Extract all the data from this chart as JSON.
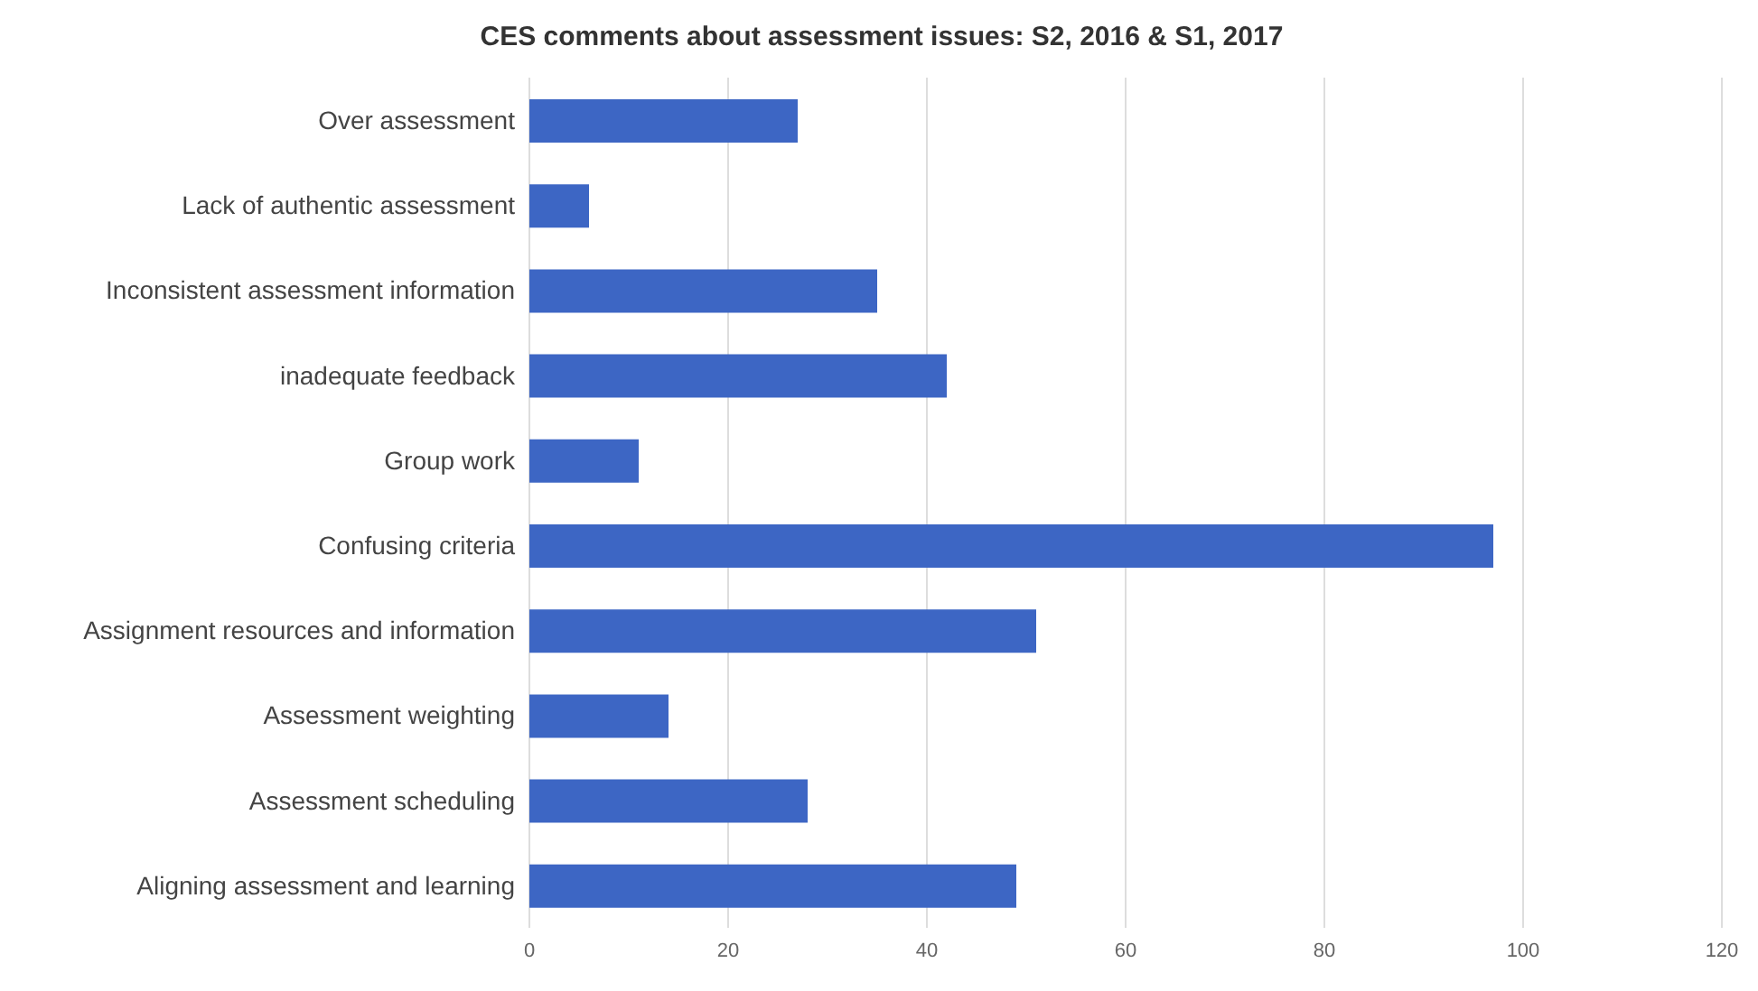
{
  "chart_data": {
    "type": "bar",
    "orientation": "horizontal",
    "title": "CES comments about assessment issues: S2, 2016 & S1, 2017",
    "categories": [
      "Over assessment",
      "Lack of authentic assessment",
      "Inconsistent assessment information",
      "inadequate feedback",
      "Group work",
      "Confusing criteria",
      "Assignment resources and information",
      "Assessment weighting",
      "Assessment scheduling",
      "Aligning assessment and learning"
    ],
    "values": [
      27,
      6,
      35,
      42,
      11,
      97,
      51,
      14,
      28,
      49
    ],
    "color": "#3d66c4",
    "xlim": [
      0,
      120
    ],
    "xticks": [
      0,
      20,
      40,
      60,
      80,
      100,
      120
    ],
    "grid": "x",
    "legend": false
  }
}
